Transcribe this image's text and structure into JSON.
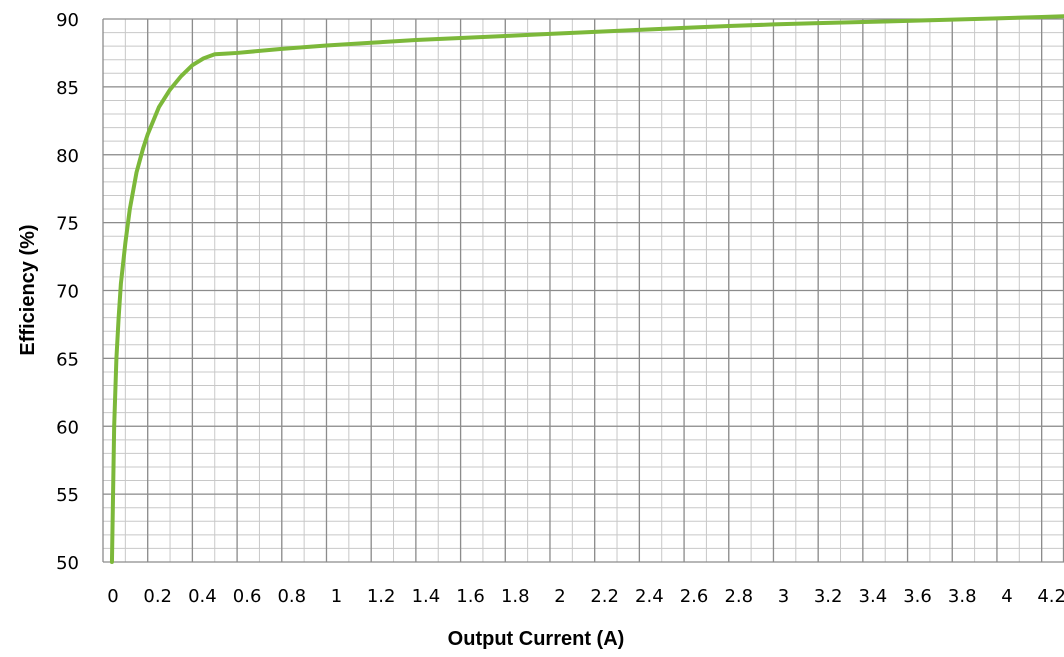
{
  "chart_data": {
    "type": "line",
    "xlabel": "Output Current (A)",
    "ylabel": "Efficiency (%)",
    "xlim": [
      0,
      4.3
    ],
    "ylim": [
      50,
      90
    ],
    "x_ticks": [
      0,
      0.2,
      0.4,
      0.6,
      0.8,
      1,
      1.2,
      1.4,
      1.6,
      1.8,
      2,
      2.2,
      2.4,
      2.6,
      2.8,
      3,
      3.2,
      3.4,
      3.6,
      3.8,
      4,
      4.2
    ],
    "y_ticks": [
      50,
      55,
      60,
      65,
      70,
      75,
      80,
      85,
      90
    ],
    "x_minor_step": 0.1,
    "y_minor_step": 1,
    "grid": true,
    "line_color": "#7cb83a",
    "grid_major_color": "#8c8c8c",
    "grid_minor_color": "#c8c8c8",
    "series": [
      {
        "x": [
          0.04,
          0.045,
          0.05,
          0.06,
          0.07,
          0.08,
          0.1,
          0.12,
          0.15,
          0.18,
          0.2,
          0.25,
          0.3,
          0.35,
          0.4,
          0.45,
          0.5,
          0.55,
          0.6,
          0.8,
          1.0,
          1.2,
          1.4,
          1.6,
          1.8,
          2.0,
          2.2,
          2.4,
          2.6,
          2.8,
          3.0,
          3.2,
          3.4,
          3.6,
          3.8,
          4.0,
          4.2,
          4.3
        ],
        "values": [
          50,
          55,
          60,
          65,
          68,
          70.5,
          73.5,
          76,
          78.7,
          80.5,
          81.5,
          83.5,
          84.8,
          85.8,
          86.6,
          87.1,
          87.4,
          87.45,
          87.5,
          87.8,
          88.05,
          88.25,
          88.45,
          88.6,
          88.75,
          88.9,
          89.05,
          89.2,
          89.35,
          89.48,
          89.6,
          89.7,
          89.78,
          89.86,
          89.95,
          90.05,
          90.15,
          90.2
        ]
      }
    ]
  }
}
